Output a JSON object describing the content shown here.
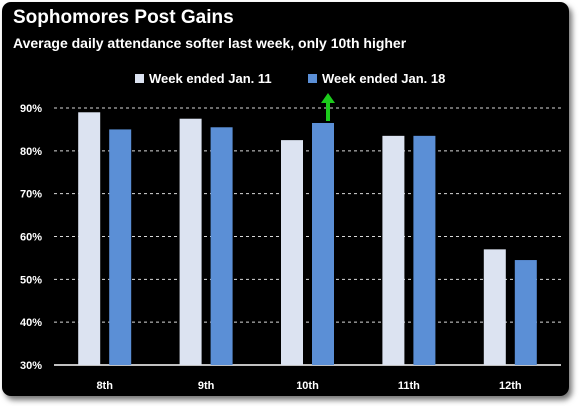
{
  "colors": {
    "background": "#000000",
    "text": "#ffffff",
    "series_prev": "#dce3f1",
    "series_curr": "#5b8fd6",
    "highlight_arrow": "#1ccc1c",
    "gridline": "#ffffff"
  },
  "chart_data": {
    "type": "bar",
    "title": "Sophomores Post Gains",
    "subtitle": "Average daily attendance softer last week, only 10th higher",
    "xlabel": "",
    "ylabel": "",
    "categories": [
      "8th",
      "9th",
      "10th",
      "11th",
      "12th"
    ],
    "series": [
      {
        "name": "Week ended Jan. 11",
        "values": [
          89,
          87.5,
          82.5,
          83.5,
          57
        ]
      },
      {
        "name": "Week ended Jan. 18",
        "values": [
          85,
          85.5,
          86.5,
          83.5,
          54.5
        ]
      }
    ],
    "ylim": [
      30,
      90
    ],
    "yticks": [
      "30%",
      "40%",
      "50%",
      "60%",
      "70%",
      "80%",
      "90%"
    ],
    "ytick_values": [
      30,
      40,
      50,
      60,
      70,
      80,
      90
    ],
    "grid": "dashed horizontal",
    "legend_position": "top-center",
    "highlight": {
      "category": "10th",
      "series": "Week ended Jan. 18",
      "marker": "up-arrow-icon"
    }
  }
}
